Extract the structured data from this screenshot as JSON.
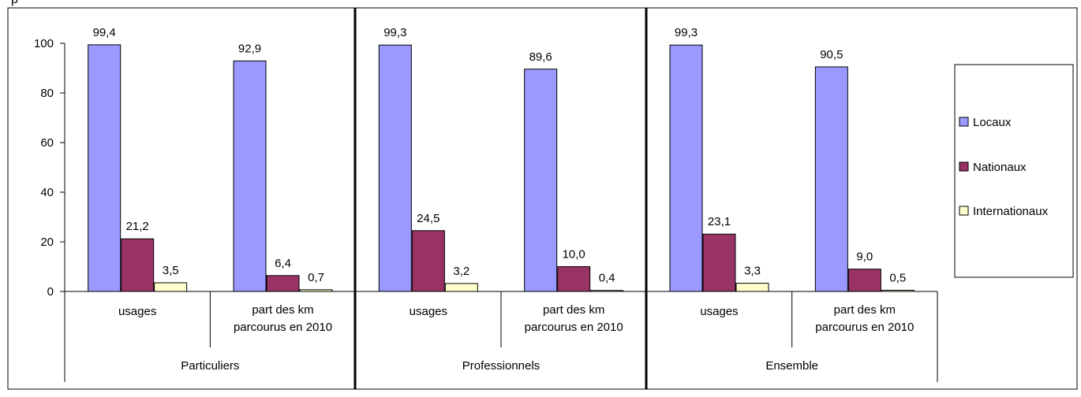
{
  "corner_label": "p",
  "colors": {
    "locaux": "#9999ff",
    "nationaux": "#993366",
    "internationaux": "#ffffcc",
    "border": "#000000"
  },
  "chart_data": {
    "type": "bar",
    "title": "",
    "xlabel": "",
    "ylabel": "",
    "ylim": [
      0,
      100
    ],
    "yticks": [
      0,
      20,
      40,
      60,
      80,
      100
    ],
    "legend_position": "right",
    "groups": [
      "Particuliers",
      "Professionnels",
      "Ensemble"
    ],
    "subcategories": [
      "usages",
      "part des km parcourus en 2010"
    ],
    "series": [
      {
        "name": "Locaux",
        "values": [
          99.4,
          92.9,
          99.3,
          89.6,
          99.3,
          90.5
        ],
        "labels": [
          "99,4",
          "92,9",
          "99,3",
          "89,6",
          "99,3",
          "90,5"
        ]
      },
      {
        "name": "Nationaux",
        "values": [
          21.2,
          6.4,
          24.5,
          10.0,
          23.1,
          9.0
        ],
        "labels": [
          "21,2",
          "6,4",
          "24,5",
          "10,0",
          "23,1",
          "9,0"
        ]
      },
      {
        "name": "Internationaux",
        "values": [
          3.5,
          0.7,
          3.2,
          0.4,
          3.3,
          0.5
        ],
        "labels": [
          "3,5",
          "0,7",
          "3,2",
          "0,4",
          "3,3",
          "0,5"
        ]
      }
    ]
  }
}
